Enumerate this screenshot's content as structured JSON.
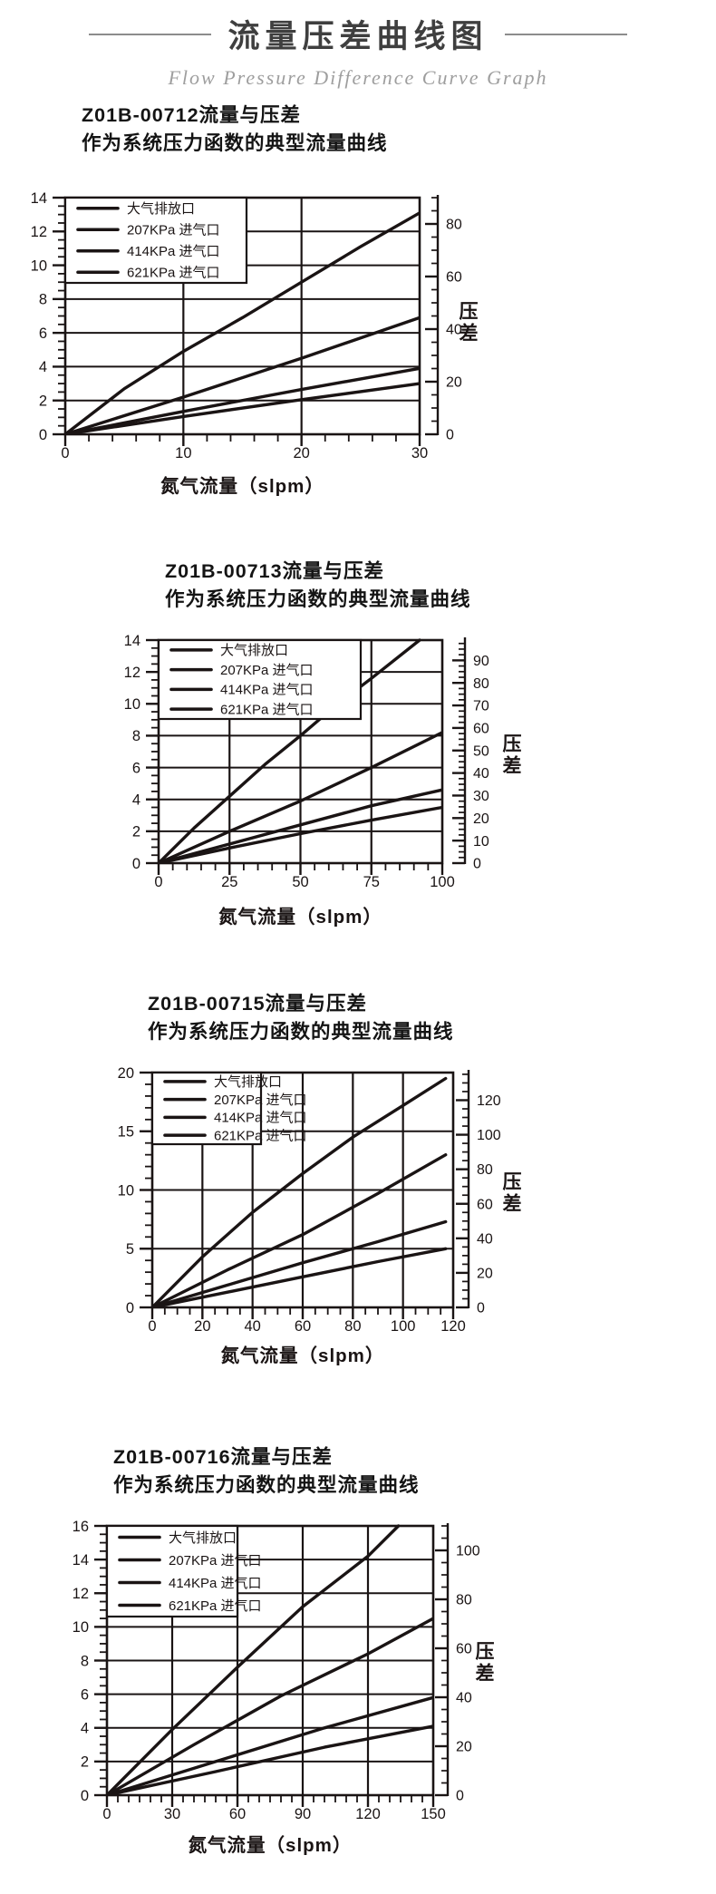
{
  "header": {
    "title": "流量压差曲线图",
    "subtitle": "Flow Pressure Difference Curve Graph"
  },
  "colors": {
    "ink": "#1a1414",
    "title_text": "#3f3f3f",
    "subtitle_text": "#9e9e9e",
    "header_rule": "#8c8c8c",
    "background": "#ffffff"
  },
  "chart_data": [
    {
      "type": "line",
      "title": "Z01B-00712流量与压差",
      "subtitle": "作为系统压力函数的典型流量曲线",
      "xlabel": "氮气流量（slpm）",
      "grid": true,
      "legend_position": "top-left",
      "x_axis": {
        "min": 0,
        "max": 30,
        "major_ticks": [
          0,
          10,
          20,
          30
        ],
        "minor_step": 2
      },
      "y_left": {
        "min": 0,
        "max": 14,
        "label_step": 2,
        "minor_step": 0.5
      },
      "y_right": {
        "label": "压差",
        "max": 90,
        "labeled_ticks": [
          0,
          20,
          40,
          60,
          80
        ],
        "minor_step": 5
      },
      "series": [
        {
          "name": "大气排放口",
          "points": [
            [
              0,
              0
            ],
            [
              5,
              2.7
            ],
            [
              10,
              4.9
            ],
            [
              15,
              6.9
            ],
            [
              20,
              9.0
            ],
            [
              25,
              11.1
            ],
            [
              30,
              13.1
            ]
          ]
        },
        {
          "name": "207KPa 进气口",
          "points": [
            [
              0,
              0
            ],
            [
              10,
              2.2
            ],
            [
              20,
              4.5
            ],
            [
              30,
              6.9
            ]
          ]
        },
        {
          "name": "414KPa 进气口",
          "points": [
            [
              0,
              0
            ],
            [
              10,
              1.35
            ],
            [
              20,
              2.65
            ],
            [
              30,
              3.9
            ]
          ]
        },
        {
          "name": "621KPa 进气口",
          "points": [
            [
              0,
              0
            ],
            [
              10,
              1.05
            ],
            [
              20,
              2.05
            ],
            [
              30,
              3.0
            ]
          ]
        }
      ]
    },
    {
      "type": "line",
      "title": "Z01B-00713流量与压差",
      "subtitle": "作为系统压力函数的典型流量曲线",
      "xlabel": "氮气流量（slpm）",
      "grid": true,
      "legend_position": "top-left",
      "x_axis": {
        "min": 0,
        "max": 100,
        "major_ticks": [
          0,
          25,
          50,
          75,
          100
        ],
        "minor_step": 5
      },
      "y_left": {
        "min": 0,
        "max": 14,
        "label_step": 2,
        "minor_step": 0.5
      },
      "y_right": {
        "label": "压差",
        "max": 99,
        "labeled_ticks": [
          0,
          10,
          20,
          30,
          40,
          50,
          60,
          70,
          80,
          90
        ],
        "minor_step": 2.5
      },
      "series": [
        {
          "name": "大气排放口",
          "points": [
            [
              0,
              0
            ],
            [
              12.5,
              2.2
            ],
            [
              25,
              4.2
            ],
            [
              37.5,
              6.2
            ],
            [
              50,
              8.0
            ],
            [
              62.5,
              9.9
            ],
            [
              75,
              11.6
            ],
            [
              92,
              14
            ]
          ]
        },
        {
          "name": "207KPa 进气口",
          "points": [
            [
              0,
              0
            ],
            [
              25,
              2.0
            ],
            [
              50,
              3.9
            ],
            [
              75,
              6.0
            ],
            [
              100,
              8.2
            ]
          ]
        },
        {
          "name": "414KPa 进气口",
          "points": [
            [
              0,
              0
            ],
            [
              25,
              1.2
            ],
            [
              50,
              2.4
            ],
            [
              75,
              3.6
            ],
            [
              100,
              4.6
            ]
          ]
        },
        {
          "name": "621KPa 进气口",
          "points": [
            [
              0,
              0
            ],
            [
              25,
              0.95
            ],
            [
              50,
              1.85
            ],
            [
              75,
              2.7
            ],
            [
              100,
              3.5
            ]
          ]
        }
      ]
    },
    {
      "type": "line",
      "title": "Z01B-00715流量与压差",
      "subtitle": "作为系统压力函数的典型流量曲线",
      "xlabel": "氮气流量（slpm）",
      "grid": true,
      "legend_position": "top-left",
      "x_axis": {
        "min": 0,
        "max": 120,
        "major_ticks": [
          0,
          20,
          40,
          60,
          80,
          100,
          120
        ],
        "minor_step": 5
      },
      "y_left": {
        "min": 0,
        "max": 20,
        "label_step": 5,
        "minor_step": 1
      },
      "y_right": {
        "label": "压差",
        "max": 136,
        "labeled_ticks": [
          0,
          20,
          40,
          60,
          80,
          100,
          120
        ],
        "minor_step": 5
      },
      "series": [
        {
          "name": "大气排放口",
          "points": [
            [
              0,
              0
            ],
            [
              20,
              4.3
            ],
            [
              40,
              8.1
            ],
            [
              60,
              11.4
            ],
            [
              80,
              14.5
            ],
            [
              100,
              17.2
            ],
            [
              117,
              19.5
            ]
          ]
        },
        {
          "name": "207KPa 进气口",
          "points": [
            [
              0,
              0
            ],
            [
              30,
              3.2
            ],
            [
              60,
              6.2
            ],
            [
              90,
              9.7
            ],
            [
              117,
              13.0
            ]
          ]
        },
        {
          "name": "414KPa 进气口",
          "points": [
            [
              0,
              0
            ],
            [
              30,
              1.9
            ],
            [
              60,
              3.8
            ],
            [
              90,
              5.6
            ],
            [
              117,
              7.3
            ]
          ]
        },
        {
          "name": "621KPa 进气口",
          "points": [
            [
              0,
              0
            ],
            [
              30,
              1.3
            ],
            [
              60,
              2.6
            ],
            [
              90,
              3.9
            ],
            [
              117,
              5.0
            ]
          ]
        }
      ]
    },
    {
      "type": "line",
      "title": "Z01B-00716流量与压差",
      "subtitle": "作为系统压力函数的典型流量曲线",
      "xlabel": "氮气流量（slpm）",
      "grid": true,
      "legend_position": "top-left",
      "x_axis": {
        "min": 0,
        "max": 150,
        "major_ticks": [
          0,
          30,
          60,
          90,
          120,
          150
        ],
        "minor_step": 5
      },
      "y_left": {
        "min": 0,
        "max": 16,
        "label_step": 2,
        "minor_step": 0.5
      },
      "y_right": {
        "label": "压差",
        "max": 110,
        "labeled_ticks": [
          0,
          20,
          40,
          60,
          80,
          100
        ],
        "minor_step": 5
      },
      "series": [
        {
          "name": "大气排放口",
          "points": [
            [
              0,
              0
            ],
            [
              30,
              3.9
            ],
            [
              60,
              7.6
            ],
            [
              90,
              11.2
            ],
            [
              120,
              14.2
            ],
            [
              134,
              16
            ]
          ]
        },
        {
          "name": "207KPa 进气口",
          "points": [
            [
              0,
              0
            ],
            [
              40,
              3.0
            ],
            [
              80,
              5.9
            ],
            [
              120,
              8.4
            ],
            [
              150,
              10.5
            ]
          ]
        },
        {
          "name": "414KPa 进气口",
          "points": [
            [
              0,
              0
            ],
            [
              50,
              2.0
            ],
            [
              100,
              4.0
            ],
            [
              150,
              5.8
            ]
          ]
        },
        {
          "name": "621KPa 进气口",
          "points": [
            [
              0,
              0
            ],
            [
              50,
              1.4
            ],
            [
              100,
              2.85
            ],
            [
              150,
              4.1
            ]
          ]
        }
      ]
    }
  ]
}
